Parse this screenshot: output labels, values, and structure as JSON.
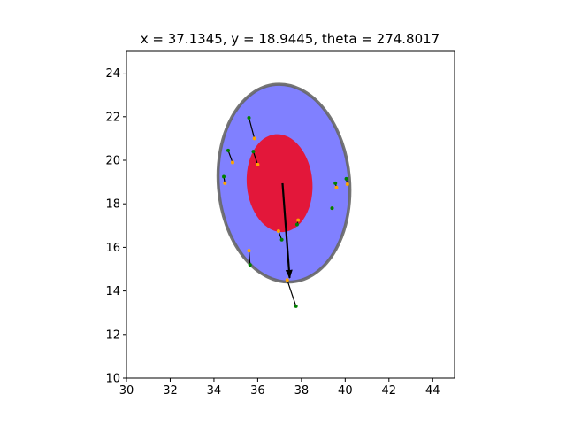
{
  "chart_data": {
    "type": "scatter",
    "title": "x = 37.1345, y = 18.9445, theta = 274.8017",
    "xlabel": "",
    "ylabel": "",
    "xlim": [
      30,
      45
    ],
    "ylim": [
      10,
      25
    ],
    "xticks": [
      30,
      32,
      34,
      36,
      38,
      40,
      42,
      44
    ],
    "yticks": [
      10,
      12,
      14,
      16,
      18,
      20,
      22,
      24
    ],
    "xtick_labels": [
      "30",
      "32",
      "34",
      "36",
      "38",
      "40",
      "42",
      "44"
    ],
    "ytick_labels": [
      "10",
      "12",
      "14",
      "16",
      "18",
      "20",
      "22",
      "24"
    ],
    "grid": false,
    "outer_ellipse": {
      "center": [
        37.2,
        18.95
      ],
      "width": 6.0,
      "height": 9.1,
      "angle_deg": -4.8,
      "fill": "#8080ff",
      "edge": "#666666"
    },
    "inner_ellipse": {
      "center": [
        37.0,
        18.95
      ],
      "width": 3.0,
      "height": 4.5,
      "angle_deg": -4.8,
      "fill": "#e3173a"
    },
    "heading_arrow": {
      "from": [
        37.1345,
        18.9445
      ],
      "to": [
        37.46,
        14.6
      ],
      "color": "#000000"
    },
    "point_pairs": [
      {
        "green": [
          35.6,
          21.95
        ],
        "orange": [
          35.85,
          21.0
        ]
      },
      {
        "green": [
          34.65,
          20.45
        ],
        "orange": [
          34.85,
          19.9
        ]
      },
      {
        "green": [
          35.8,
          20.4
        ],
        "orange": [
          36.0,
          19.8
        ]
      },
      {
        "green": [
          34.45,
          19.25
        ],
        "orange": [
          34.5,
          18.95
        ]
      },
      {
        "green": [
          39.55,
          18.95
        ],
        "orange": [
          39.6,
          18.75
        ]
      },
      {
        "green": [
          40.05,
          19.15
        ],
        "orange": [
          40.1,
          18.9
        ]
      },
      {
        "green": [
          39.4,
          17.8
        ],
        "orange": [
          39.4,
          17.8
        ]
      },
      {
        "green": [
          37.8,
          17.05
        ],
        "orange": [
          37.85,
          17.25
        ]
      },
      {
        "green": [
          37.1,
          16.35
        ],
        "orange": [
          36.95,
          16.75
        ]
      },
      {
        "green": [
          35.65,
          15.2
        ],
        "orange": [
          35.6,
          15.85
        ]
      },
      {
        "green": [
          37.75,
          13.3
        ],
        "orange": [
          37.35,
          14.5
        ]
      }
    ],
    "series_colors": {
      "green": "#008000",
      "orange": "#ffa500"
    }
  }
}
